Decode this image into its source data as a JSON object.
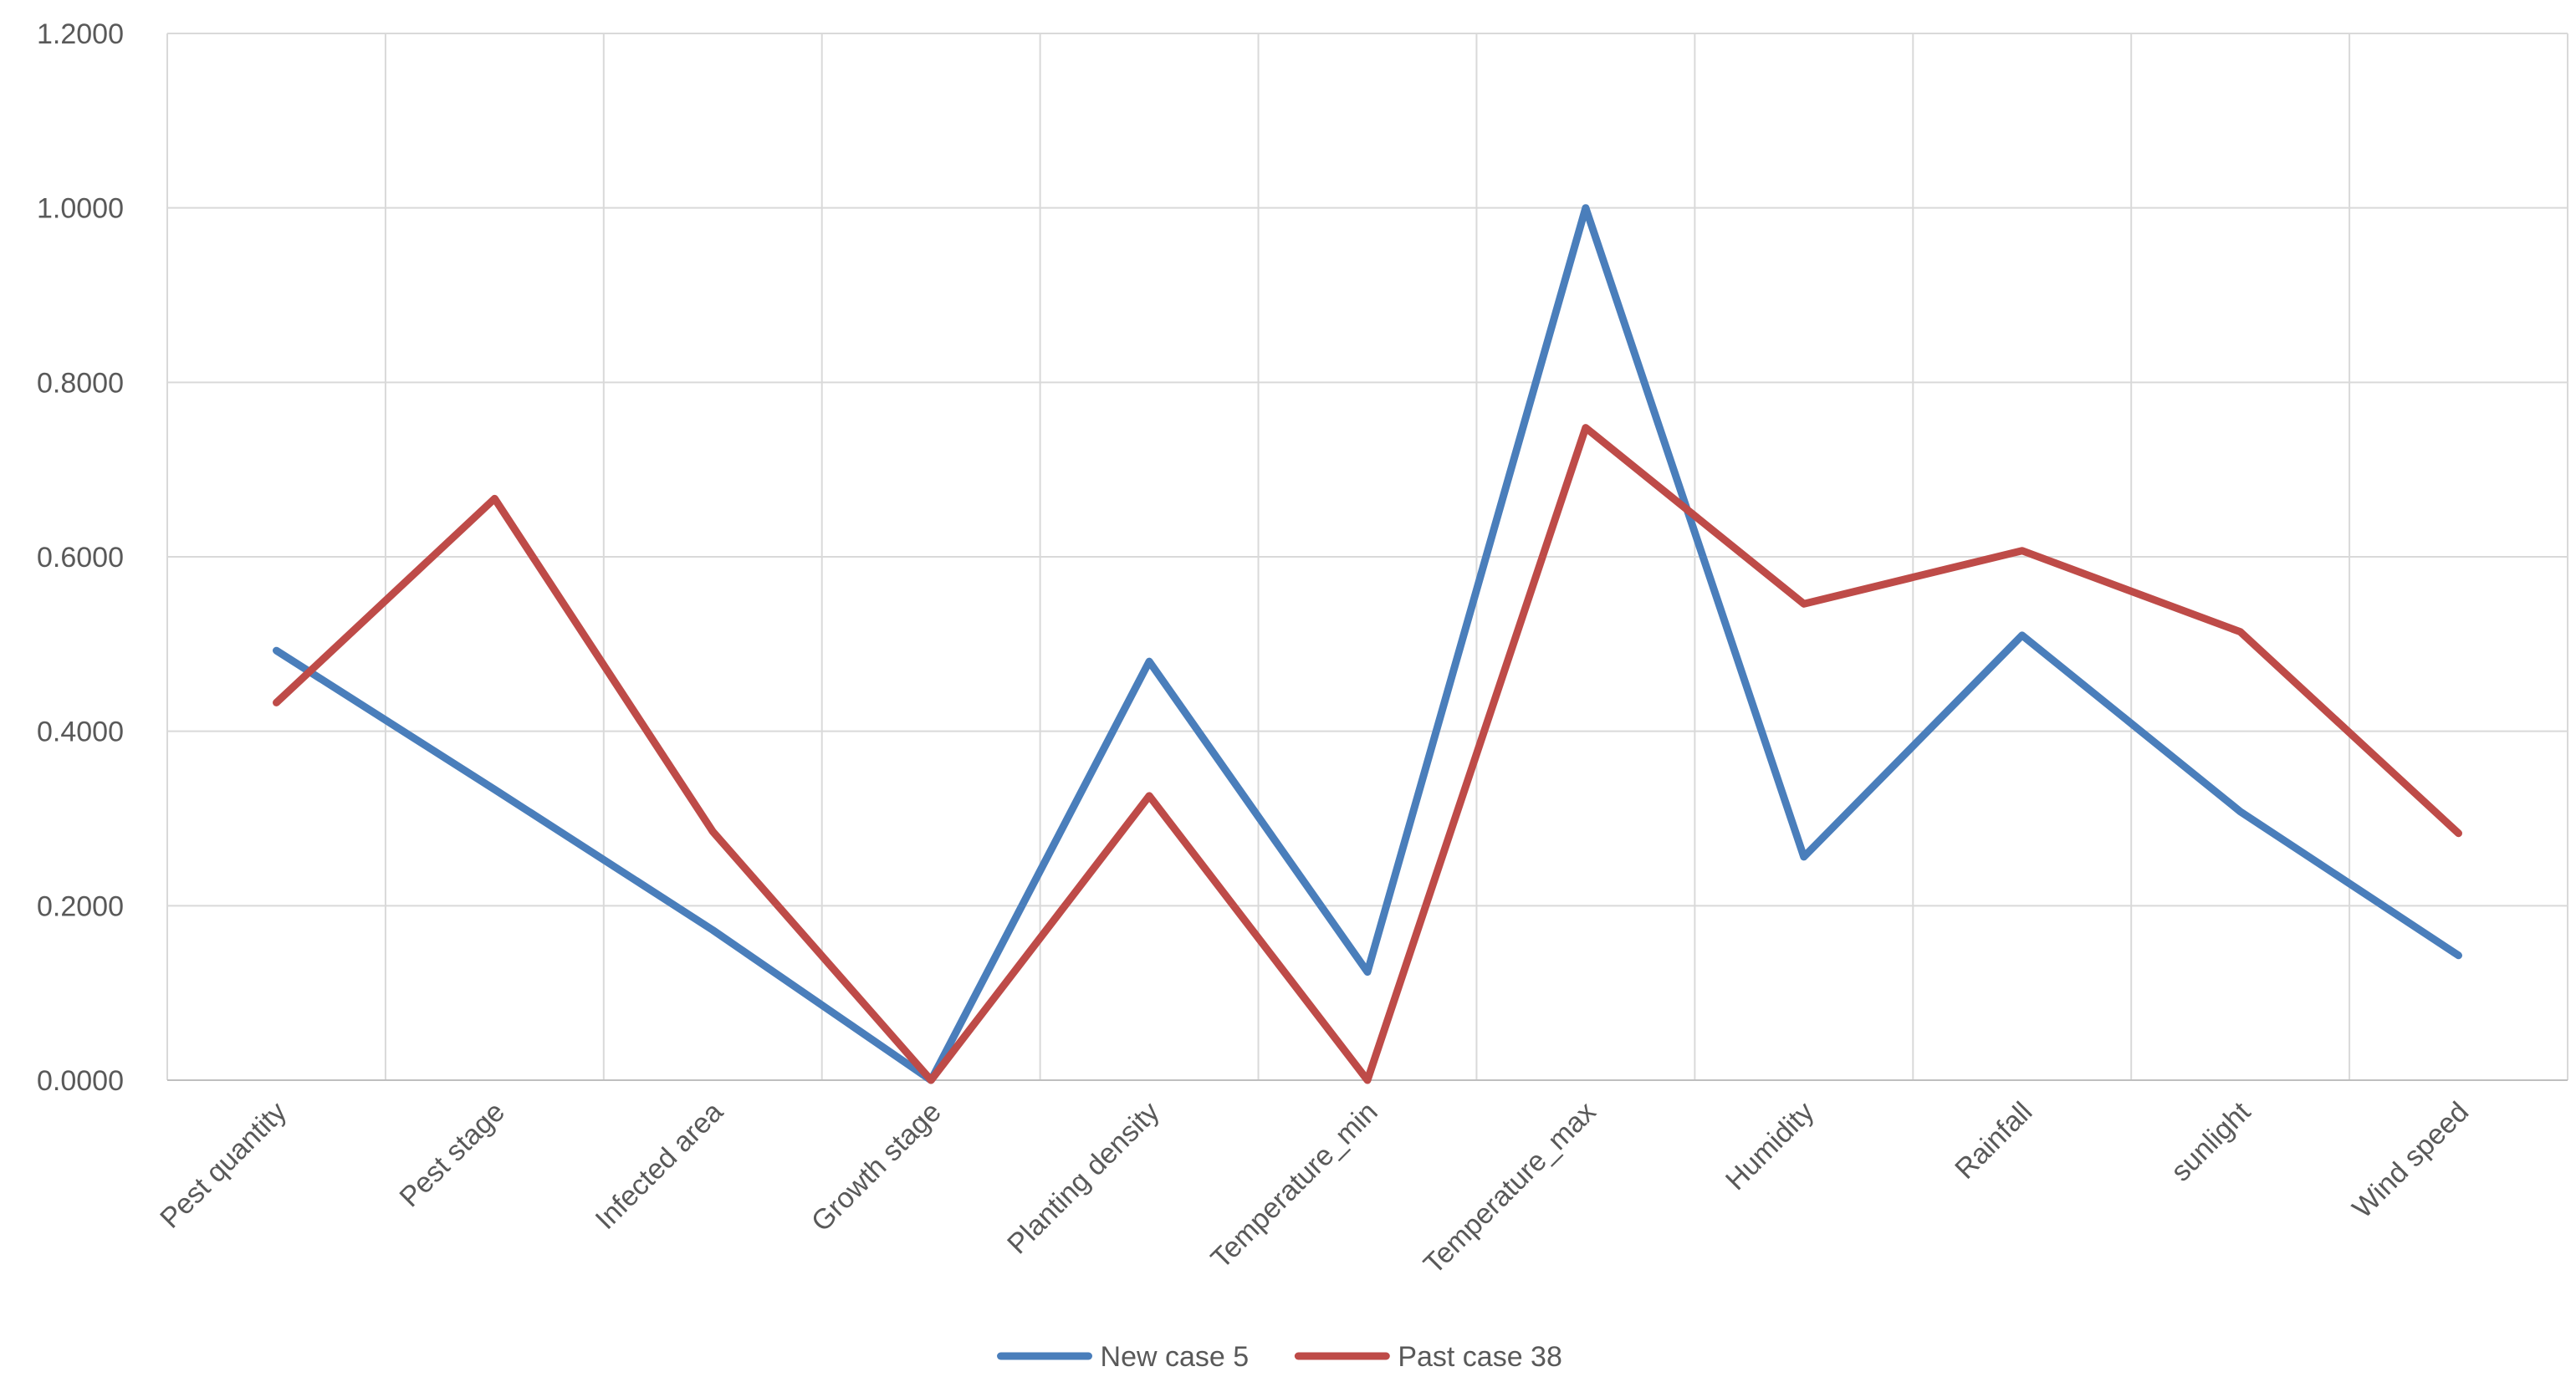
{
  "chart_data": {
    "type": "line",
    "title": "",
    "xlabel": "",
    "ylabel": "",
    "categories": [
      "Pest quantity",
      "Pest stage",
      "Infected area",
      "Growth stage",
      "Planting density",
      "Temperature_min",
      "Temperature_max",
      "Humidity",
      "Rainfall",
      "sunlight",
      "Wind speed"
    ],
    "ylim": [
      0,
      1.2
    ],
    "yticks": [
      "0.0000",
      "0.2000",
      "0.4000",
      "0.6000",
      "0.8000",
      "1.0000",
      "1.2000"
    ],
    "grid": true,
    "legend_position": "bottom",
    "series": [
      {
        "name": "New case 5",
        "color": "#4a7ebb",
        "values": [
          0.4925,
          0.3333,
          0.172,
          0.0,
          0.48,
          0.124,
          1.0,
          0.256,
          0.51,
          0.308,
          0.143
        ]
      },
      {
        "name": "Past case 38",
        "color": "#be4b48",
        "values": [
          0.4328,
          0.6667,
          0.285,
          0.0,
          0.326,
          0.0,
          0.748,
          0.546,
          0.607,
          0.514,
          0.283
        ]
      }
    ]
  }
}
